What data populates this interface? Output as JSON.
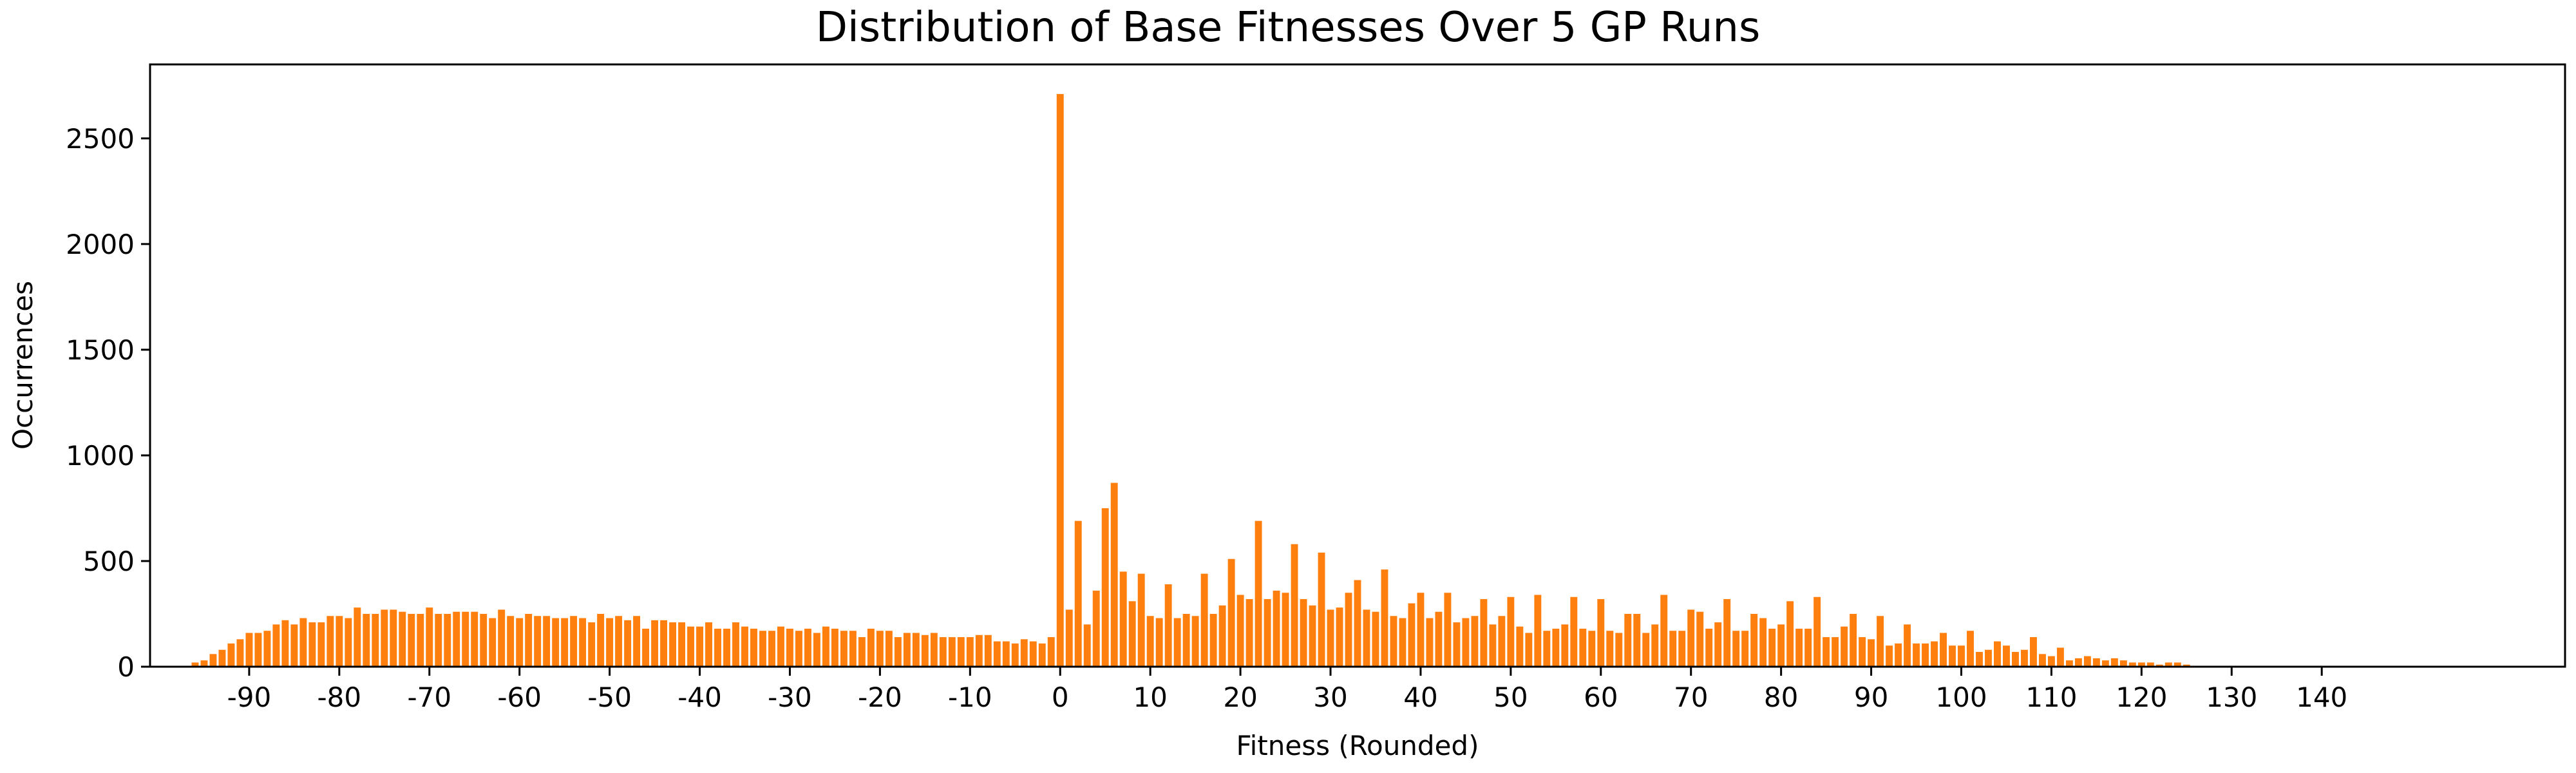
{
  "chart_data": {
    "type": "bar",
    "title": "Distribution of Base Fitnesses Over 5 GP Runs",
    "xlabel": "Fitness (Rounded)",
    "ylabel": "Occurrences",
    "xlim": [
      -101,
      167
    ],
    "ylim": [
      0,
      2850
    ],
    "grid": false,
    "bar_color": "#ff7f0e",
    "xticks": [
      -90,
      -80,
      -70,
      -60,
      -50,
      -40,
      -30,
      -20,
      -10,
      0,
      10,
      20,
      30,
      40,
      50,
      60,
      70,
      80,
      90,
      100,
      110,
      120,
      130,
      140
    ],
    "xtick_labels": [
      "-90",
      "-80",
      "-70",
      "-60",
      "-50",
      "-40",
      "-30",
      "-20",
      "-10",
      "0",
      "10",
      "20",
      "30",
      "40",
      "50",
      "60",
      "70",
      "80",
      "90",
      "100",
      "110",
      "120",
      "130",
      "140"
    ],
    "yticks": [
      0,
      500,
      1000,
      1500,
      2000,
      2500
    ],
    "ytick_labels": [
      "0",
      "500",
      "1000",
      "1500",
      "2000",
      "2500"
    ],
    "x": [
      -96,
      -95,
      -94,
      -93,
      -92,
      -91,
      -90,
      -89,
      -88,
      -87,
      -86,
      -85,
      -84,
      -83,
      -82,
      -81,
      -80,
      -79,
      -78,
      -77,
      -76,
      -75,
      -74,
      -73,
      -72,
      -71,
      -70,
      -69,
      -68,
      -67,
      -66,
      -65,
      -64,
      -63,
      -62,
      -61,
      -60,
      -59,
      -58,
      -57,
      -56,
      -55,
      -54,
      -53,
      -52,
      -51,
      -50,
      -49,
      -48,
      -47,
      -46,
      -45,
      -44,
      -43,
      -42,
      -41,
      -40,
      -39,
      -38,
      -37,
      -36,
      -35,
      -34,
      -33,
      -32,
      -31,
      -30,
      -29,
      -28,
      -27,
      -26,
      -25,
      -24,
      -23,
      -22,
      -21,
      -20,
      -19,
      -18,
      -17,
      -16,
      -15,
      -14,
      -13,
      -12,
      -11,
      -10,
      -9,
      -8,
      -7,
      -6,
      -5,
      -4,
      -3,
      -2,
      -1,
      0,
      1,
      2,
      3,
      4,
      5,
      6,
      7,
      8,
      9,
      10,
      11,
      12,
      13,
      14,
      15,
      16,
      17,
      18,
      19,
      20,
      21,
      22,
      23,
      24,
      25,
      26,
      27,
      28,
      29,
      30,
      31,
      32,
      33,
      34,
      35,
      36,
      37,
      38,
      39,
      40,
      41,
      42,
      43,
      44,
      45,
      46,
      47,
      48,
      49,
      50,
      51,
      52,
      53,
      54,
      55,
      56,
      57,
      58,
      59,
      60,
      61,
      62,
      63,
      64,
      65,
      66,
      67,
      68,
      69,
      70,
      71,
      72,
      73,
      74,
      75,
      76,
      77,
      78,
      79,
      80,
      81,
      82,
      83,
      84,
      85,
      86,
      87,
      88,
      89,
      90,
      91,
      92,
      93,
      94,
      95,
      96,
      97,
      98,
      99,
      100,
      101,
      102,
      103,
      104,
      105,
      106,
      107,
      108,
      109,
      110,
      111,
      112,
      113,
      114,
      115,
      116,
      117,
      118,
      119,
      120,
      121,
      122,
      123,
      124,
      125
    ],
    "values": [
      20,
      30,
      60,
      80,
      110,
      130,
      160,
      160,
      170,
      200,
      220,
      200,
      230,
      210,
      210,
      240,
      240,
      230,
      280,
      250,
      250,
      270,
      270,
      260,
      250,
      250,
      280,
      250,
      250,
      260,
      260,
      260,
      250,
      230,
      270,
      240,
      230,
      250,
      240,
      240,
      230,
      230,
      240,
      230,
      210,
      250,
      230,
      240,
      220,
      240,
      180,
      220,
      220,
      210,
      210,
      190,
      190,
      210,
      180,
      180,
      210,
      190,
      180,
      170,
      170,
      190,
      180,
      170,
      180,
      160,
      190,
      180,
      170,
      170,
      140,
      180,
      170,
      170,
      140,
      160,
      160,
      150,
      160,
      140,
      140,
      140,
      140,
      150,
      150,
      120,
      120,
      110,
      130,
      120,
      110,
      140,
      2710,
      270,
      690,
      200,
      360,
      750,
      870,
      450,
      310,
      440,
      240,
      230,
      390,
      230,
      250,
      240,
      440,
      250,
      290,
      510,
      340,
      320,
      690,
      320,
      360,
      350,
      580,
      320,
      290,
      540,
      270,
      280,
      350,
      410,
      270,
      260,
      460,
      240,
      230,
      300,
      350,
      230,
      260,
      350,
      210,
      230,
      240,
      320,
      200,
      240,
      330,
      190,
      160,
      340,
      170,
      180,
      200,
      330,
      180,
      170,
      320,
      170,
      160,
      250,
      250,
      160,
      200,
      340,
      170,
      170,
      270,
      260,
      180,
      210,
      320,
      170,
      170,
      250,
      230,
      180,
      200,
      310,
      180,
      180,
      330,
      140,
      140,
      190,
      250,
      140,
      130,
      240,
      100,
      110,
      200,
      110,
      110,
      120,
      160,
      100,
      100,
      170,
      70,
      80,
      120,
      100,
      70,
      80,
      140,
      60,
      50,
      90,
      30,
      40,
      50,
      40,
      30,
      40,
      30,
      20,
      20,
      20,
      10,
      20,
      20,
      10
    ]
  }
}
